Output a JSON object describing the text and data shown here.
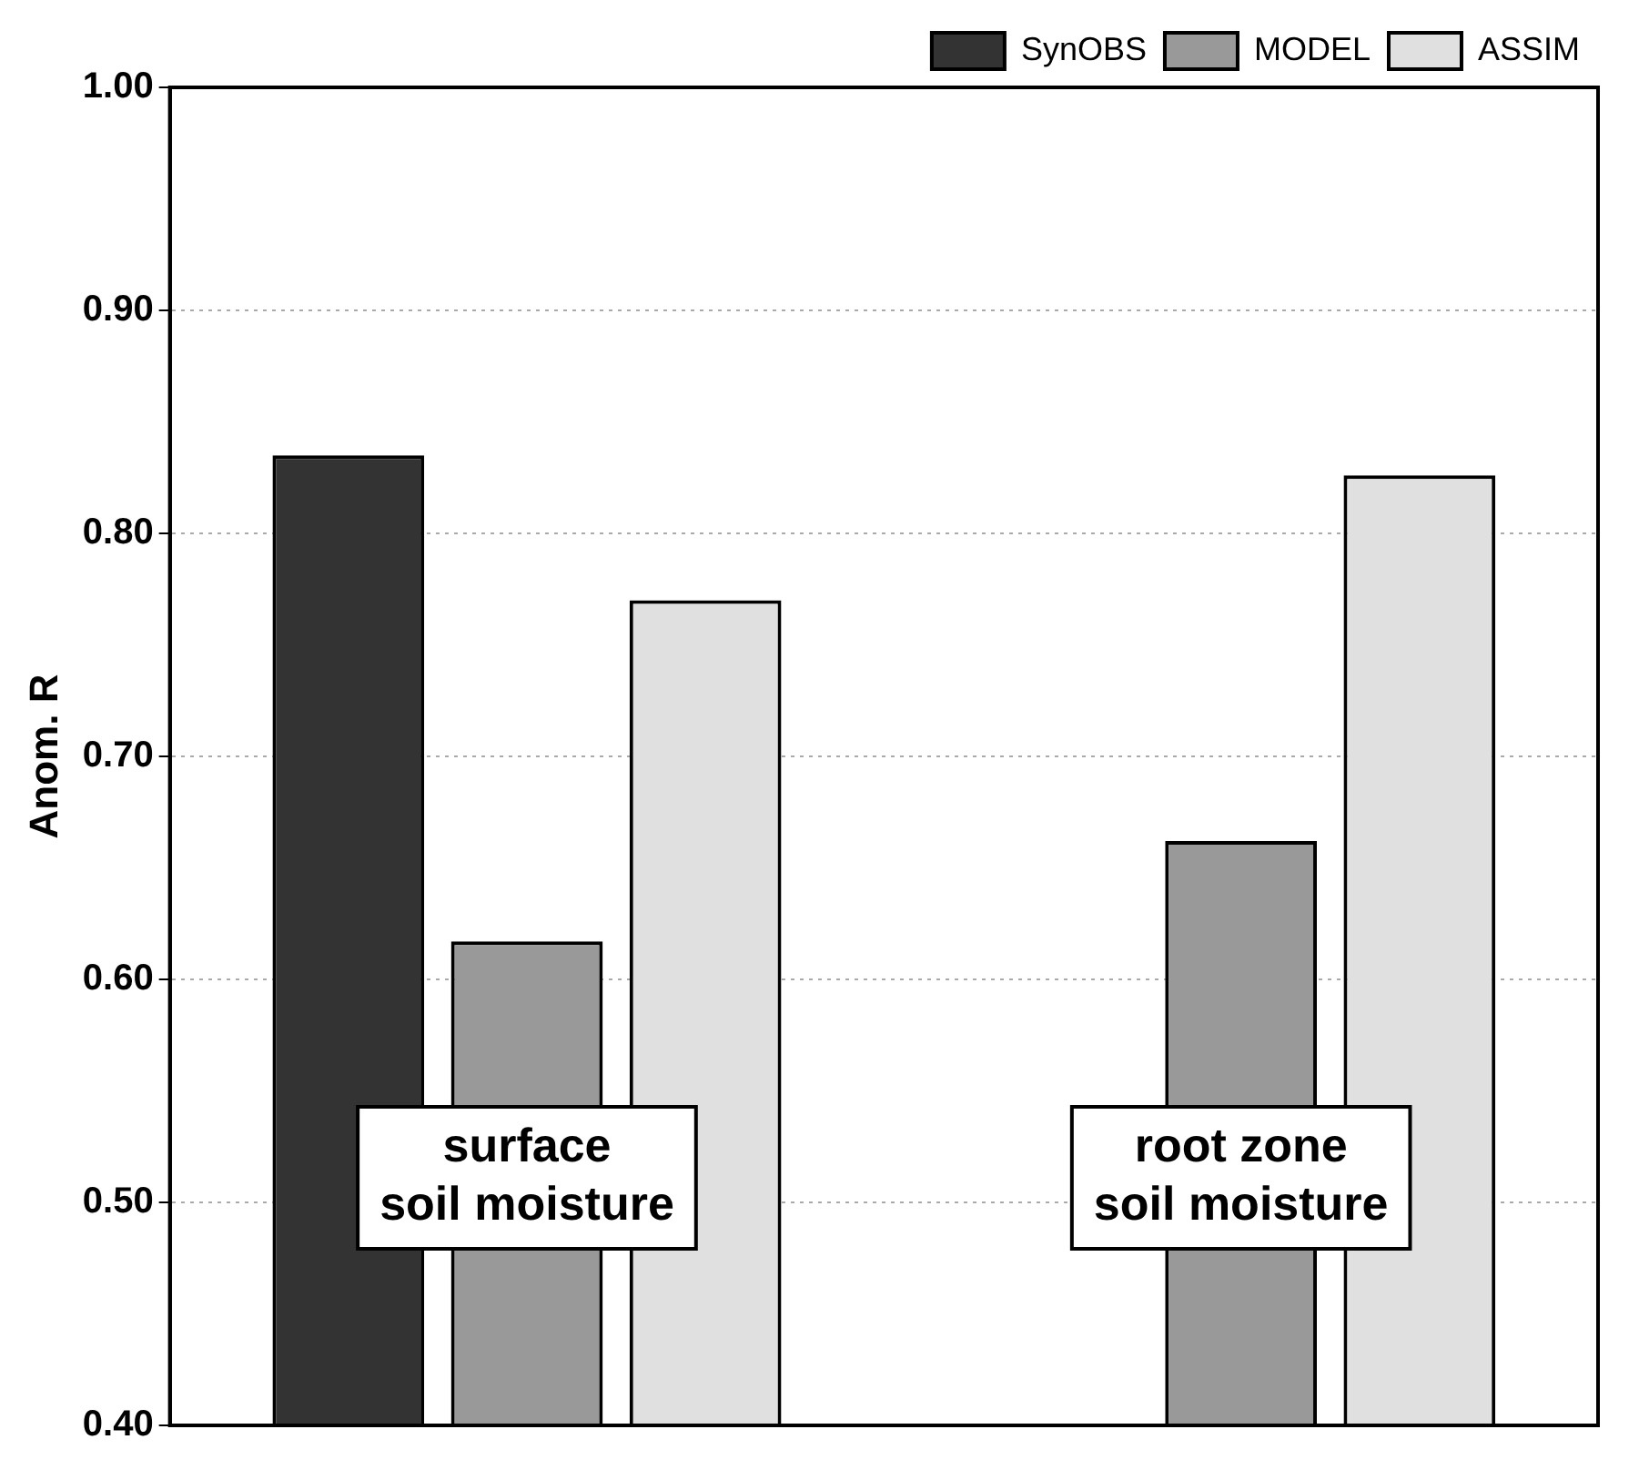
{
  "chart_data": {
    "type": "bar",
    "ylabel": "Anom. R",
    "categories": [
      "surface\nsoil moisture",
      "root zone\nsoil moisture"
    ],
    "series": [
      {
        "name": "SynOBS",
        "color": "#333333",
        "values": [
          0.835,
          null
        ]
      },
      {
        "name": "MODEL",
        "color": "#999999",
        "values": [
          0.617,
          0.662
        ]
      },
      {
        "name": "ASSIM",
        "color": "#e0e0e0",
        "values": [
          0.77,
          0.826
        ]
      }
    ],
    "ylim": [
      0.4,
      1.0
    ],
    "yticks": [
      {
        "value": 0.4,
        "label": "0.40"
      },
      {
        "value": 0.5,
        "label": "0.50"
      },
      {
        "value": 0.6,
        "label": "0.60"
      },
      {
        "value": 0.7,
        "label": "0.70"
      },
      {
        "value": 0.8,
        "label": "0.80"
      },
      {
        "value": 0.9,
        "label": "0.90"
      },
      {
        "value": 1.0,
        "label": "1.00"
      }
    ],
    "grid": "y",
    "legend": "top right"
  }
}
